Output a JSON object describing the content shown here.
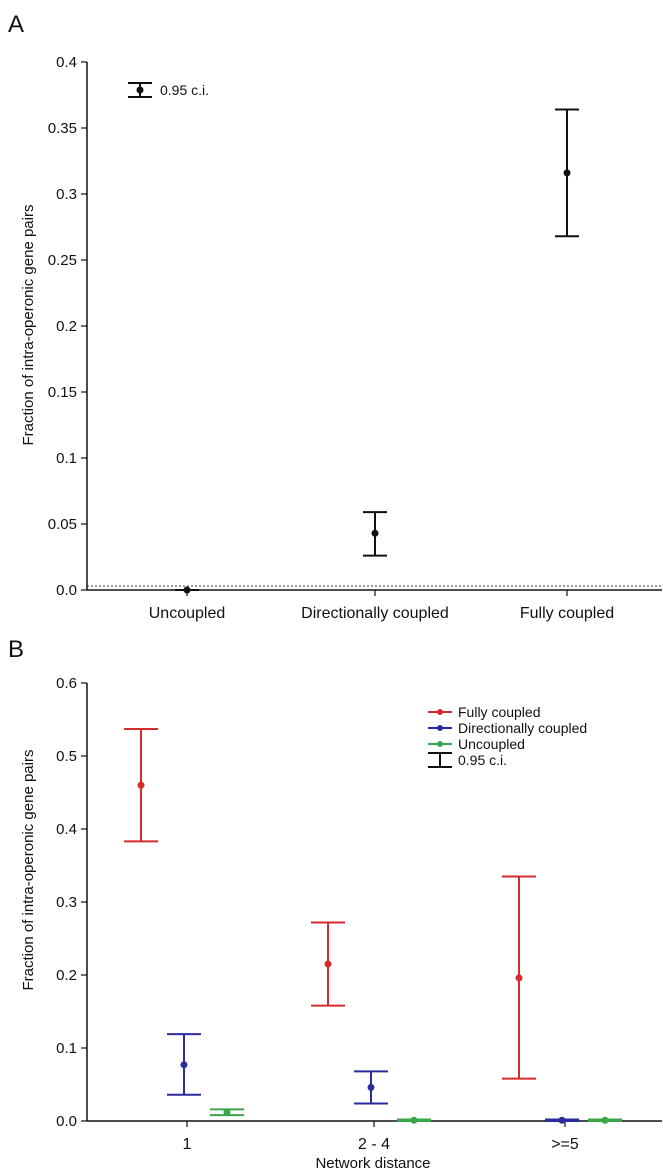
{
  "chart_data": [
    {
      "type": "errorbar",
      "panel_label": "A",
      "xlabel": "",
      "ylabel": "Fraction of intra-operonic gene pairs",
      "ylim": [
        0,
        0.4
      ],
      "y_ticks": [
        "0.0",
        "0.05",
        "0.1",
        "0.15",
        "0.2",
        "0.25",
        "0.3",
        "0.35",
        "0.4"
      ],
      "categories": [
        "Uncoupled",
        "Directionally coupled",
        "Fully coupled"
      ],
      "series": [
        {
          "color": "#111111",
          "points": [
            {
              "category": "Uncoupled",
              "value": 0.0,
              "lower": 0.0,
              "upper": 0.0
            },
            {
              "category": "Directionally coupled",
              "value": 0.043,
              "lower": 0.026,
              "upper": 0.059
            },
            {
              "category": "Fully coupled",
              "value": 0.316,
              "lower": 0.268,
              "upper": 0.364
            }
          ]
        }
      ],
      "reference_line": {
        "y": 0.003,
        "style": "dotted"
      },
      "legend": {
        "position": "top-left",
        "entries": [
          {
            "label": "0.95 c.i.",
            "marker": "errorbar"
          }
        ]
      }
    },
    {
      "type": "errorbar",
      "panel_label": "B",
      "xlabel": "Network distance",
      "ylabel": "Fraction of intra-operonic gene pairs",
      "ylim": [
        0,
        0.6
      ],
      "y_ticks": [
        "0.0",
        "0.1",
        "0.2",
        "0.3",
        "0.4",
        "0.5",
        "0.6"
      ],
      "categories": [
        "1",
        "2 - 4",
        ">=5"
      ],
      "series": [
        {
          "name": "Fully coupled",
          "color": "#d62b2b",
          "points": [
            {
              "category": "1",
              "value": 0.46,
              "lower": 0.383,
              "upper": 0.537
            },
            {
              "category": "2 - 4",
              "value": 0.215,
              "lower": 0.158,
              "upper": 0.272
            },
            {
              "category": ">=5",
              "value": 0.196,
              "lower": 0.058,
              "upper": 0.335
            }
          ]
        },
        {
          "name": "Directionally coupled",
          "color": "#2b2b9e",
          "points": [
            {
              "category": "1",
              "value": 0.077,
              "lower": 0.036,
              "upper": 0.119
            },
            {
              "category": "2 - 4",
              "value": 0.046,
              "lower": 0.024,
              "upper": 0.068
            },
            {
              "category": ">=5",
              "value": 0.001,
              "lower": 0.0,
              "upper": 0.002
            }
          ]
        },
        {
          "name": "Uncoupled",
          "color": "#3aa64a",
          "points": [
            {
              "category": "1",
              "value": 0.012,
              "lower": 0.008,
              "upper": 0.016
            },
            {
              "category": "2 - 4",
              "value": 0.001,
              "lower": 0.0,
              "upper": 0.002
            },
            {
              "category": ">=5",
              "value": 0.001,
              "lower": 0.0,
              "upper": 0.002
            }
          ]
        }
      ],
      "legend": {
        "position": "top-right",
        "entries": [
          {
            "label": "Fully coupled",
            "color": "#d62b2b",
            "marker": "dot-line"
          },
          {
            "label": "Directionally coupled",
            "color": "#2b2b9e",
            "marker": "dot-line"
          },
          {
            "label": "Uncoupled",
            "color": "#3aa64a",
            "marker": "dot-line"
          },
          {
            "label": "0.95 c.i.",
            "color": "#111111",
            "marker": "errorbar"
          }
        ]
      }
    }
  ]
}
